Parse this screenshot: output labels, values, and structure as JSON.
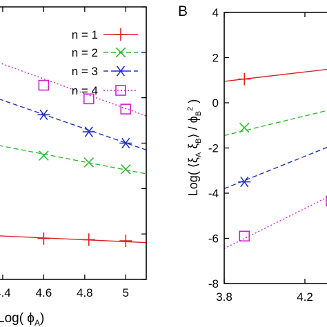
{
  "chart_data": [
    {
      "type": "scatter",
      "panel": "A",
      "panel_label": "",
      "xlabel": "Log( ϕ",
      "xlabel_sub": "A",
      "xlabel_close": ")",
      "ylabel": "",
      "xticks": [
        4.4,
        4.6,
        4.8,
        5
      ],
      "xtick_labels": [
        "4.4",
        "4.6",
        "4.8",
        "5"
      ],
      "xlim": [
        4.38,
        5.1
      ],
      "ylim": [
        -8,
        4
      ],
      "legend_position": "top-right",
      "series": [
        {
          "name": "n = 1",
          "marker": "plus",
          "line": "solid",
          "color": "#dd2222",
          "x": [
            4.6,
            4.82,
            5.0
          ],
          "y": [
            -6.2,
            -6.25,
            -6.3
          ],
          "fit_y_at_xlim": [
            -6.08,
            -6.38
          ]
        },
        {
          "name": "n = 2",
          "marker": "cross",
          "line": "dashed",
          "color": "#33bb33",
          "x": [
            4.6,
            4.82,
            5.0
          ],
          "y": [
            -2.55,
            -2.85,
            -3.15
          ],
          "fit_y_at_xlim": [
            -2.1,
            -3.35
          ]
        },
        {
          "name": "n = 3",
          "marker": "asterisk",
          "line": "dashed",
          "color": "#2233bb",
          "x": [
            4.6,
            4.82,
            5.0
          ],
          "y": [
            -0.75,
            -1.5,
            -2.0
          ],
          "fit_y_at_xlim": [
            -0.05,
            -2.3
          ]
        },
        {
          "name": "n = 4",
          "marker": "square",
          "line": "dotted",
          "color": "#cc22cc",
          "x": [
            4.6,
            4.82,
            5.0
          ],
          "y": [
            0.55,
            -0.05,
            -0.5
          ],
          "fit_y_at_xlim": [
            1.55,
            -0.8
          ]
        }
      ]
    },
    {
      "type": "scatter",
      "panel": "B",
      "panel_label": "B",
      "xlabel": "",
      "ylabel": "Log( ⟨ξ",
      "ylabel_sub1": "A",
      "ylabel_mid": " ξ",
      "ylabel_sub2": "B",
      "ylabel_mid2": "⟩ / ϕ",
      "ylabel_sub3": "B",
      "ylabel_sup3": "2",
      "ylabel_close": " )",
      "xticks": [
        3.8,
        4.2
      ],
      "xtick_labels": [
        "3.8",
        "4.2"
      ],
      "yticks": [
        -8,
        -6,
        -4,
        -2,
        0,
        2,
        4
      ],
      "ytick_labels": [
        "-8",
        "-6",
        "-4",
        "-2",
        "0",
        "2",
        "4"
      ],
      "xlim": [
        3.8,
        4.33
      ],
      "ylim": [
        -8,
        4
      ],
      "series": [
        {
          "name": "n = 1",
          "marker": "plus",
          "line": "solid",
          "color": "#dd2222",
          "x": [
            3.9
          ],
          "y": [
            1.05
          ],
          "fit_y_at_xlim": [
            0.95,
            1.5
          ]
        },
        {
          "name": "n = 2",
          "marker": "cross",
          "line": "dashed",
          "color": "#33bb33",
          "x": [
            3.9
          ],
          "y": [
            -1.1
          ],
          "fit_y_at_xlim": [
            -1.45,
            -0.3
          ]
        },
        {
          "name": "n = 3",
          "marker": "asterisk",
          "line": "dashed",
          "color": "#2233bb",
          "x": [
            3.9
          ],
          "y": [
            -3.5
          ],
          "fit_y_at_xlim": [
            -3.8,
            -1.9
          ]
        },
        {
          "name": "n = 4",
          "marker": "square",
          "line": "dotted",
          "color": "#cc22cc",
          "x": [
            3.9,
            4.33
          ],
          "y": [
            -5.9,
            -4.35
          ],
          "fit_y_at_xlim": [
            -6.45,
            -4.1
          ]
        }
      ]
    }
  ]
}
